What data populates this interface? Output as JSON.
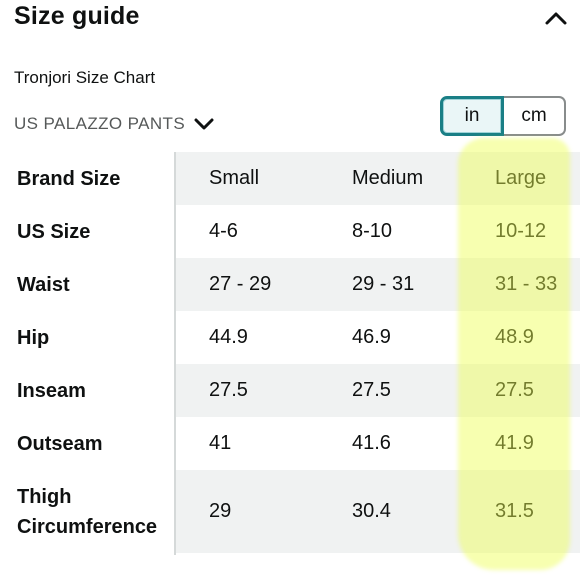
{
  "header": {
    "title": "Size guide",
    "collapse_icon": "chevron-up-icon"
  },
  "chart_title": "Tronjori Size Chart",
  "category": {
    "label": "US PALAZZO PANTS",
    "icon": "chevron-down-icon"
  },
  "units": {
    "options": [
      "in",
      "cm"
    ],
    "selected": "in",
    "accent": "#1a7f86"
  },
  "table": {
    "columns": [
      "Small",
      "Medium",
      "Large"
    ],
    "rows": [
      {
        "label": "Brand Size",
        "values": [
          "Small",
          "Medium",
          "Large"
        ],
        "shaded": true
      },
      {
        "label": "US Size",
        "values": [
          "4-6",
          "8-10",
          "10-12"
        ],
        "shaded": false
      },
      {
        "label": "Waist",
        "values": [
          "27 - 29",
          "29 - 31",
          "31 - 33"
        ],
        "shaded": true
      },
      {
        "label": "Hip",
        "values": [
          "44.9",
          "46.9",
          "48.9"
        ],
        "shaded": false
      },
      {
        "label": "Inseam",
        "values": [
          "27.5",
          "27.5",
          "27.5"
        ],
        "shaded": true
      },
      {
        "label": "Outseam",
        "values": [
          "41",
          "41.6",
          "41.9"
        ],
        "shaded": false
      },
      {
        "label": "Thigh Circumference",
        "label_lines": [
          "Thigh",
          "Circumference"
        ],
        "values": [
          "29",
          "30.4",
          "31.5"
        ],
        "shaded": true
      }
    ],
    "highlighted_column": "Large",
    "highlight_color": "#eeff50"
  }
}
